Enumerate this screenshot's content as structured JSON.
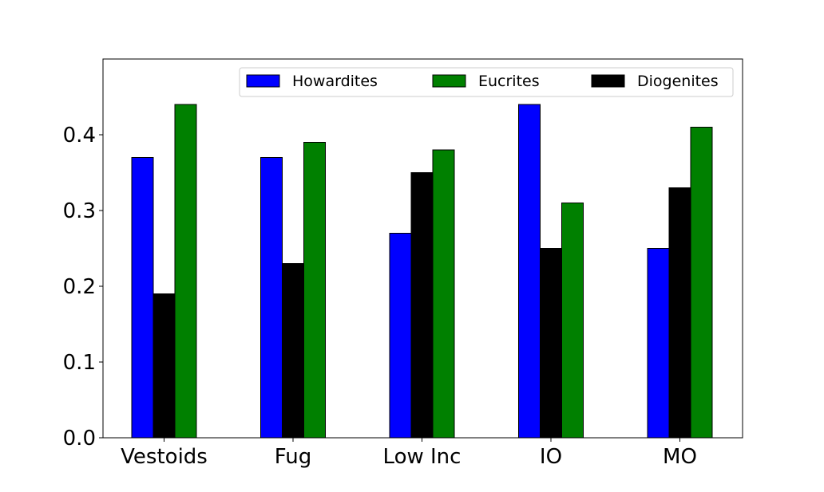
{
  "chart_data": {
    "type": "bar",
    "categories": [
      "Vestoids",
      "Fug",
      "Low Inc",
      "IO",
      "MO"
    ],
    "series": [
      {
        "name": "Howardites",
        "color": "#0000ff",
        "values": [
          0.37,
          0.37,
          0.27,
          0.44,
          0.25
        ]
      },
      {
        "name": "Diogenites",
        "color": "#000000",
        "values": [
          0.19,
          0.23,
          0.35,
          0.25,
          0.33
        ]
      },
      {
        "name": "Eucrites",
        "color": "#008000",
        "values": [
          0.44,
          0.39,
          0.38,
          0.31,
          0.41
        ]
      }
    ],
    "legend_order": [
      "Howardites",
      "Eucrites",
      "Diogenites"
    ],
    "legend_position": "top-right",
    "title": "",
    "xlabel": "",
    "ylabel": "",
    "ylim": [
      0,
      0.5
    ],
    "yticks": [
      "0.0",
      "0.1",
      "0.2",
      "0.3",
      "0.4"
    ],
    "grid": false
  }
}
